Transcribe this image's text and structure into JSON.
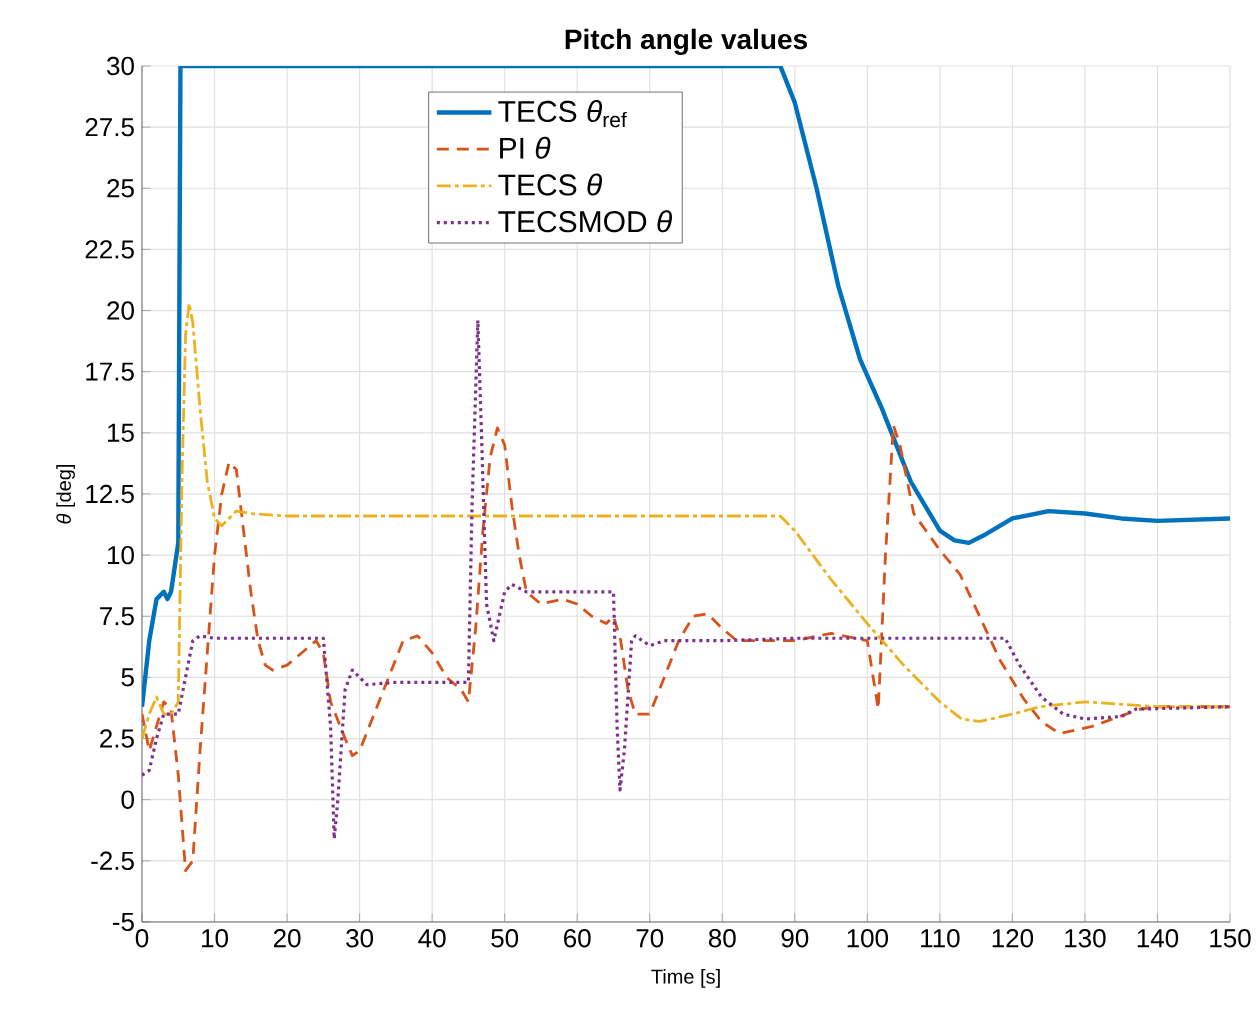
{
  "chart_data": {
    "type": "line",
    "title": "Pitch angle values",
    "xlabel": "Time [s]",
    "ylabel": "*θ* [deg]",
    "xlim": [
      0,
      150
    ],
    "ylim": [
      -5,
      30
    ],
    "xticks": [
      0,
      10,
      20,
      30,
      40,
      50,
      60,
      70,
      80,
      90,
      100,
      110,
      120,
      130,
      140,
      150
    ],
    "yticks": [
      -5,
      -2.5,
      0,
      2.5,
      5,
      7.5,
      10,
      12.5,
      15,
      17.5,
      20,
      22.5,
      25,
      27.5,
      30
    ],
    "grid": true,
    "legend": "top",
    "series": [
      {
        "name": "TECS *θ*$_{ref}$",
        "color": "#0072bd",
        "line_style": "solid",
        "x": [
          0,
          1,
          2,
          3,
          3.5,
          4,
          5,
          5.3,
          85,
          88,
          90,
          93,
          96,
          99,
          102,
          104,
          106,
          108,
          110,
          112,
          114,
          116,
          120,
          125,
          130,
          135,
          140,
          150
        ],
        "values": [
          3.8,
          6.5,
          8.2,
          8.5,
          8.2,
          8.5,
          10.5,
          30,
          30,
          30,
          28.5,
          25,
          21,
          18,
          16,
          14.5,
          13,
          12,
          11,
          10.6,
          10.5,
          10.8,
          11.5,
          11.8,
          11.7,
          11.5,
          11.4,
          11.5
        ]
      },
      {
        "name": "PI *θ*",
        "color": "#d95319",
        "line_style": "dashed",
        "x": [
          0,
          1,
          2,
          3,
          4,
          5,
          6,
          7,
          8,
          9,
          10,
          11,
          12,
          13,
          14,
          15,
          16,
          17,
          18,
          20,
          22,
          24,
          25,
          26,
          28,
          29,
          30,
          32,
          34,
          36,
          38,
          40,
          42,
          44,
          45,
          46,
          47,
          48,
          49,
          50,
          51,
          52,
          53,
          55,
          58,
          60,
          62,
          64,
          65,
          66,
          67,
          68,
          70,
          72,
          74,
          76,
          78,
          80,
          82,
          85,
          90,
          95,
          100,
          101.5,
          102.5,
          103.6,
          104.5,
          106.4,
          110,
          112.8,
          115,
          118.3,
          121.6,
          124,
          126.5,
          131,
          137.6,
          140,
          150
        ],
        "values": [
          3.5,
          2,
          3,
          4,
          3.7,
          1,
          -2.9,
          -2.5,
          2,
          6,
          10,
          12.5,
          13.8,
          13.5,
          11,
          8.5,
          6.5,
          5.5,
          5.3,
          5.5,
          6,
          6.5,
          6,
          4,
          2.5,
          1.8,
          2,
          3.5,
          5,
          6.5,
          6.7,
          6,
          5,
          4.5,
          4,
          7,
          11,
          14,
          15.2,
          14.5,
          12,
          10,
          8.5,
          8,
          8.2,
          8,
          7.5,
          7.2,
          7.5,
          6.5,
          4.5,
          3.5,
          3.5,
          5,
          6.5,
          7.5,
          7.6,
          7,
          6.5,
          6.5,
          6.5,
          6.8,
          6.5,
          3.7,
          10,
          15.3,
          14.5,
          11.7,
          10.2,
          9.2,
          7.8,
          5.7,
          4.1,
          3.2,
          2.7,
          3,
          3.7,
          3.8,
          3.8
        ]
      },
      {
        "name": "TECS *θ*",
        "color": "#edb120",
        "line_style": "dashdot",
        "x": [
          0,
          1,
          2,
          3,
          4,
          5,
          5.5,
          6,
          6.5,
          7,
          8,
          9,
          10,
          11,
          12,
          13,
          15,
          20,
          88,
          90,
          95,
          100,
          105,
          110,
          113,
          115.5,
          120,
          123.8,
          130,
          140,
          150
        ],
        "values": [
          2.5,
          3.5,
          4.2,
          3.5,
          3.5,
          4,
          13,
          19,
          20.3,
          19.5,
          16,
          13,
          11.5,
          11.2,
          11.5,
          11.8,
          11.7,
          11.6,
          11.6,
          11,
          9,
          7.2,
          5.5,
          4,
          3.3,
          3.2,
          3.5,
          3.8,
          4,
          3.8,
          3.8
        ]
      },
      {
        "name": "TECSMOD *θ*",
        "color": "#7e2f8e",
        "line_style": "dotted",
        "x": [
          0,
          1,
          2,
          3,
          4,
          5,
          6,
          7,
          8,
          10,
          15,
          20,
          25,
          26,
          26.5,
          27,
          28,
          29,
          31,
          35,
          40,
          45,
          45.5,
          46.3,
          46.8,
          47.5,
          48.5,
          50,
          51,
          53,
          60,
          65,
          65.5,
          65.9,
          66.5,
          67.5,
          68,
          70,
          72,
          80,
          90,
          100,
          110,
          119,
          121,
          124,
          127,
          130,
          135,
          137,
          150
        ],
        "values": [
          1,
          1.2,
          2.5,
          3.5,
          3.5,
          3.5,
          5,
          6.5,
          6.7,
          6.6,
          6.6,
          6.6,
          6.6,
          3,
          -1.6,
          0,
          4.5,
          5.3,
          4.7,
          4.8,
          4.8,
          4.8,
          12,
          19.6,
          15,
          8,
          6.5,
          8.5,
          8.8,
          8.5,
          8.5,
          8.5,
          3,
          0.4,
          2,
          6.5,
          6.7,
          6.3,
          6.5,
          6.5,
          6.6,
          6.6,
          6.6,
          6.6,
          5.5,
          4.2,
          3.5,
          3.3,
          3.4,
          3.7,
          3.8
        ]
      }
    ]
  }
}
